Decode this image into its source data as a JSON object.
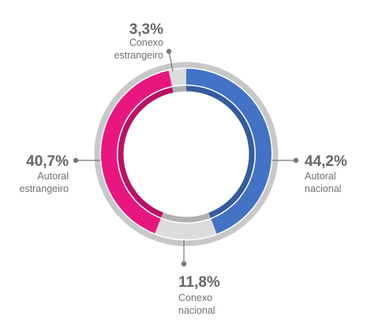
{
  "chart_data": {
    "type": "pie",
    "donut": true,
    "start_angle_deg": 0,
    "direction": "clockwise",
    "slices": [
      {
        "pct_label": "44,2%",
        "label_lines": [
          "Autoral",
          "nacional"
        ],
        "value": 44.2,
        "color": "#4472c4"
      },
      {
        "pct_label": "11,8%",
        "label_lines": [
          "Conexo",
          "nacional"
        ],
        "value": 11.8,
        "color": "#dcdcdc"
      },
      {
        "pct_label": "40,7%",
        "label_lines": [
          "Autoral",
          "estrangeiro"
        ],
        "value": 40.7,
        "color": "#e8177f"
      },
      {
        "pct_label": "3,3%",
        "label_lines": [
          "Conexo",
          "estrangeiro"
        ],
        "value": 3.3,
        "color": "#dcdcdc"
      }
    ],
    "ring_color": "#c8c8c8",
    "leader_color": "#777777"
  }
}
